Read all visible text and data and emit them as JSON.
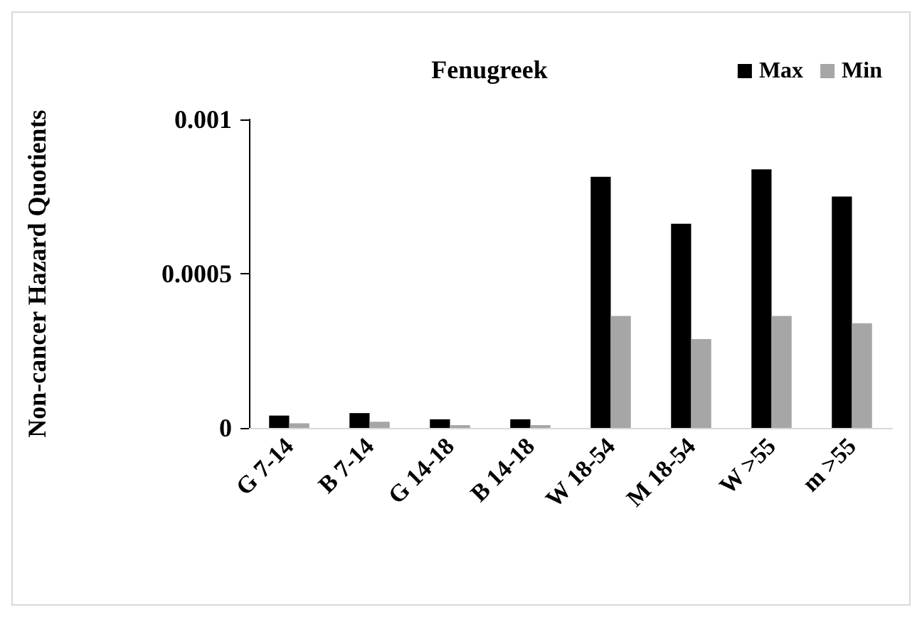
{
  "chart_data": {
    "type": "bar",
    "title": "Fenugreek",
    "ylabel": "Non-cancer Hazard Quotients",
    "categories": [
      "G 7-14",
      "B 7-14",
      "G 14-18",
      "B 14-18",
      "W 18-54",
      "M 18-54",
      "W >55",
      "m >55"
    ],
    "series": [
      {
        "name": "Max",
        "color": "#000000",
        "values": [
          4e-05,
          4.8e-05,
          2.8e-05,
          2.8e-05,
          0.000814,
          0.000662,
          0.000838,
          0.00075
        ]
      },
      {
        "name": "Min",
        "color": "#a6a6a6",
        "values": [
          1.5e-05,
          2e-05,
          9e-06,
          9e-06,
          0.000363,
          0.000288,
          0.000363,
          0.000339
        ]
      }
    ],
    "ylim": [
      0,
      0.001
    ],
    "yticks": [
      0,
      0.0005,
      0.001
    ],
    "grid": false,
    "legend": "top right"
  }
}
